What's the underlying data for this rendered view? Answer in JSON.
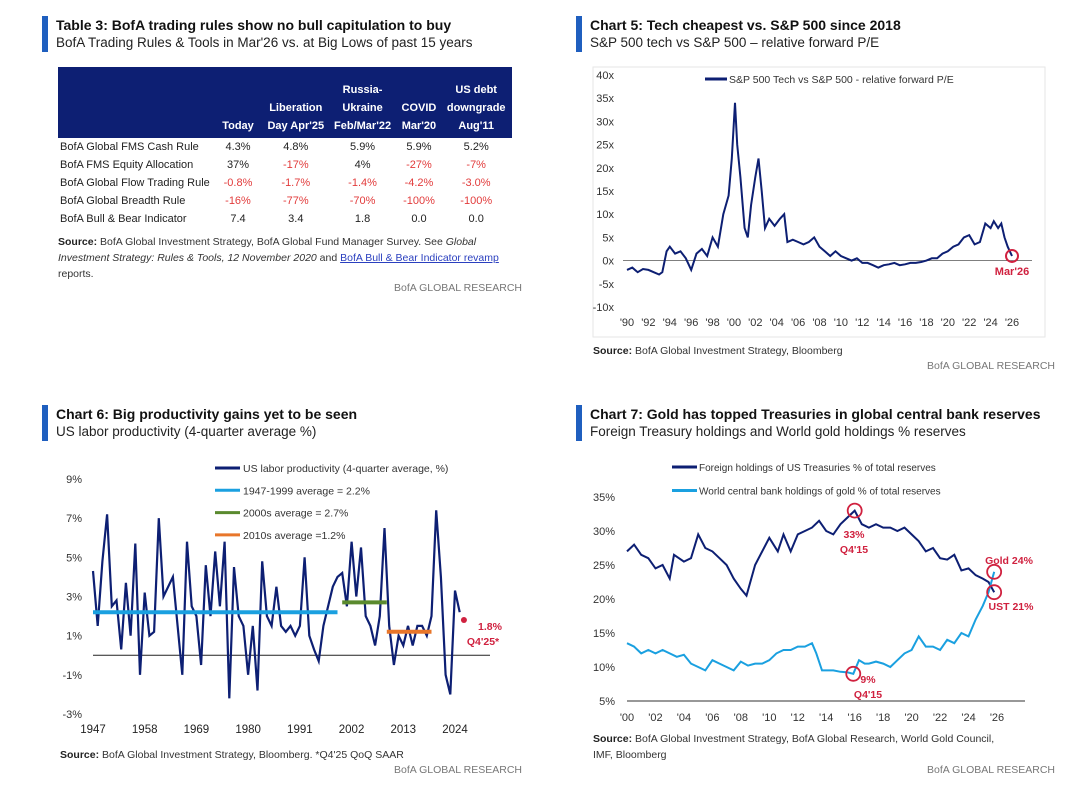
{
  "table3": {
    "title": "Table 3: BofA trading rules show no bull capitulation to buy",
    "subtitle": "BofA Trading Rules & Tools in Mar'26 vs. at Big Lows of past 15 years",
    "columns": [
      "",
      "Today",
      "Liberation Day Apr'25",
      "Russia-Ukraine Feb/Mar'22",
      "COVID Mar'20",
      "US debt downgrade Aug'11"
    ],
    "rows": [
      {
        "label": "BofA Global FMS Cash Rule",
        "values": [
          "4.3%",
          "4.8%",
          "5.9%",
          "5.9%",
          "5.2%"
        ]
      },
      {
        "label": "BofA FMS Equity Allocation",
        "values": [
          "37%",
          "-17%",
          "4%",
          "-27%",
          "-7%"
        ]
      },
      {
        "label": "BofA Global Flow Trading Rule",
        "values": [
          "-0.8%",
          "-1.7%",
          "-1.4%",
          "-4.2%",
          "-3.0%"
        ]
      },
      {
        "label": "BofA Global Breadth Rule",
        "values": [
          "-16%",
          "-77%",
          "-70%",
          "-100%",
          "-100%"
        ]
      },
      {
        "label": "BofA Bull & Bear Indicator",
        "values": [
          "7.4",
          "3.4",
          "1.8",
          "0.0",
          "0.0"
        ]
      }
    ],
    "source_label": "Source:",
    "source_text": " BofA Global Investment Strategy, BofA Global Fund Manager Survey. See ",
    "source_italic": "Global Investment Strategy: Rules & Tools, 12 November 2020",
    "source_and": " and ",
    "source_link": "BofA Bull & Bear Indicator revamp",
    "source_end": " reports.",
    "brand": "BofA GLOBAL RESEARCH"
  },
  "colors": {
    "navy": "#0d1f73",
    "light_blue": "#1aa0e0",
    "green": "#5a8a2e",
    "orange": "#e8762a",
    "red": "#d0213f",
    "negative": "#e23b3b"
  },
  "chart_data": [
    {
      "id": "chart5",
      "type": "line",
      "title": "Chart 5: Tech cheapest vs. S&P 500 since 2018",
      "subtitle": "S&P 500 tech vs S&P 500 – relative forward P/E",
      "ylim": [
        -10,
        40
      ],
      "yticks": [
        "40x",
        "35x",
        "30x",
        "25x",
        "20x",
        "15x",
        "10x",
        "5x",
        "0x",
        "-5x",
        "-10x"
      ],
      "xticks": [
        "'90",
        "'92",
        "'94",
        "'96",
        "'98",
        "'00",
        "'02",
        "'04",
        "'06",
        "'08",
        "'10",
        "'12",
        "'14",
        "'16",
        "'18",
        "'20",
        "'22",
        "'24",
        "'26"
      ],
      "series": [
        {
          "name": "S&P 500 Tech vs S&P 500 - relative forward P/E",
          "x": [
            1990,
            1990.5,
            1991,
            1991.5,
            1992,
            1992.5,
            1993,
            1993.3,
            1993.7,
            1994,
            1994.5,
            1995,
            1995.5,
            1996,
            1996.5,
            1997,
            1997.5,
            1998,
            1998.5,
            1999,
            1999.5,
            1999.8,
            2000.1,
            2000.3,
            2000.6,
            2001,
            2001.3,
            2001.6,
            2002,
            2002.3,
            2002.6,
            2002.9,
            2003.3,
            2003.8,
            2004.3,
            2004.7,
            2005,
            2005.5,
            2006,
            2006.5,
            2007,
            2007.5,
            2008,
            2008.5,
            2009,
            2009.5,
            2010,
            2010.5,
            2011,
            2011.5,
            2012,
            2012.5,
            2013,
            2013.5,
            2014,
            2014.5,
            2015,
            2015.5,
            2016,
            2016.5,
            2017,
            2017.5,
            2018,
            2018.5,
            2019,
            2019.5,
            2020,
            2020.5,
            2021,
            2021.5,
            2022,
            2022.5,
            2023,
            2023.5,
            2024,
            2024.3,
            2024.7,
            2025,
            2025.3,
            2025.6,
            2026
          ],
          "y": [
            -2,
            -1.5,
            -2.5,
            -1.8,
            -2,
            -2.5,
            -3,
            -2.5,
            2,
            3,
            1.5,
            2,
            0.5,
            -2,
            1.5,
            2.5,
            1,
            5,
            3,
            10,
            14,
            22,
            34,
            25,
            18,
            7,
            5,
            12,
            18,
            22,
            15,
            7,
            9,
            7.5,
            9,
            10,
            4,
            4.5,
            4,
            3.5,
            4,
            5,
            3,
            2,
            1,
            2,
            1,
            0.5,
            0,
            0.5,
            -0.5,
            -0.5,
            -1,
            -1.5,
            -1,
            -0.8,
            -0.5,
            -1,
            -0.8,
            -0.5,
            -0.5,
            -0.3,
            0,
            0.5,
            0.5,
            1.5,
            2,
            3,
            3.5,
            5,
            5.5,
            3.5,
            4,
            8,
            7,
            8.5,
            7,
            8,
            5,
            3,
            1
          ]
        }
      ],
      "annotations": [
        "Mar'26"
      ],
      "source_label": "Source:",
      "source_text": " BofA Global Investment Strategy, Bloomberg",
      "brand": "BofA GLOBAL RESEARCH"
    },
    {
      "id": "chart6",
      "type": "line",
      "title": "Chart 6: Big productivity gains yet to be seen",
      "subtitle": "US labor productivity (4-quarter average %)",
      "ylim": [
        -3,
        9
      ],
      "yticks": [
        "9%",
        "7%",
        "5%",
        "3%",
        "1%",
        "-1%",
        "-3%"
      ],
      "xticks": [
        "1947",
        "1958",
        "1969",
        "1980",
        "1991",
        "2002",
        "2013",
        "2024"
      ],
      "series": [
        {
          "name": "US labor productivity (4-quarter average, %)",
          "x": [
            1947,
            1948,
            1949,
            1950,
            1951,
            1952,
            1953,
            1954,
            1955,
            1956,
            1957,
            1958,
            1959,
            1960,
            1961,
            1962,
            1963,
            1964,
            1965,
            1966,
            1967,
            1968,
            1969,
            1970,
            1971,
            1972,
            1973,
            1974,
            1975,
            1976,
            1977,
            1978,
            1979,
            1980,
            1981,
            1982,
            1983,
            1984,
            1985,
            1986,
            1987,
            1988,
            1989,
            1990,
            1991,
            1992,
            1993,
            1994,
            1995,
            1996,
            1997,
            1998,
            1999,
            2000,
            2001,
            2002,
            2003,
            2004,
            2005,
            2006,
            2007,
            2008,
            2009,
            2010,
            2011,
            2012,
            2013,
            2014,
            2015,
            2016,
            2017,
            2018,
            2019,
            2020,
            2021,
            2022,
            2023,
            2024,
            2025
          ],
          "y": [
            4.3,
            1.5,
            4.8,
            7.2,
            2.5,
            2.8,
            0.3,
            3.7,
            1,
            5.7,
            -1,
            3.2,
            1,
            1.2,
            7,
            3,
            3.5,
            4,
            1.5,
            -1,
            5.8,
            2.5,
            2,
            -0.5,
            4.6,
            2,
            5.3,
            2.5,
            5.8,
            -2.2,
            4.5,
            2,
            1.5,
            -1,
            1.5,
            -1.8,
            4.8,
            2,
            1.5,
            3.5,
            1.5,
            1.2,
            1.5,
            1,
            1.5,
            5,
            1,
            0.3,
            -0.3,
            1.5,
            2.5,
            3.5,
            4,
            4.2,
            2.5,
            5.8,
            3,
            5.5,
            2,
            1.5,
            0.5,
            2,
            6.5,
            1.5,
            -0.5,
            1,
            0.5,
            1.5,
            0.5,
            1.5,
            1.5,
            1,
            2,
            7.4,
            4,
            -1,
            -2,
            3.3,
            2.2
          ]
        },
        {
          "name": "1947-1999 average = 2.2%",
          "x": [
            1947,
            1999
          ],
          "y": [
            2.2,
            2.2
          ]
        },
        {
          "name": "2000s average = 2.7%",
          "x": [
            2000,
            2009.5
          ],
          "y": [
            2.7,
            2.7
          ]
        },
        {
          "name": "2010s average =1.2%",
          "x": [
            2009.5,
            2019
          ],
          "y": [
            1.2,
            1.2
          ]
        }
      ],
      "highlight": {
        "x": 2025.9,
        "y": 1.8,
        "label1": "1.8%",
        "label2": "Q4'25*"
      },
      "source_label": "Source:",
      "source_text": " BofA Global Investment Strategy, Bloomberg. *Q4'25 QoQ SAAR",
      "brand": "BofA GLOBAL RESEARCH"
    },
    {
      "id": "chart7",
      "type": "line",
      "title": "Chart 7: Gold has topped Treasuries in global central bank reserves",
      "subtitle": "Foreign Treasury holdings and World gold holdings % reserves",
      "ylim": [
        5,
        35
      ],
      "yticks": [
        "35%",
        "30%",
        "25%",
        "20%",
        "15%",
        "10%",
        "5%"
      ],
      "xticks": [
        "'00",
        "'02",
        "'04",
        "'06",
        "'08",
        "'10",
        "'12",
        "'14",
        "'16",
        "'18",
        "'20",
        "'22",
        "'24",
        "'26"
      ],
      "series": [
        {
          "name": "Foreign holdings of US Treasuries % of total reserves",
          "x": [
            2000,
            2000.5,
            2001,
            2001.5,
            2002,
            2002.5,
            2003,
            2003.3,
            2004,
            2004.5,
            2005,
            2005.5,
            2006,
            2006.5,
            2007,
            2007.5,
            2008,
            2008.4,
            2009,
            2009.5,
            2010,
            2010.6,
            2011,
            2011.5,
            2012,
            2012.5,
            2013,
            2013.5,
            2014,
            2014.5,
            2015,
            2015.5,
            2016,
            2016.5,
            2017,
            2017.5,
            2018,
            2018.5,
            2019,
            2019.5,
            2020,
            2020.5,
            2021,
            2021.5,
            2022,
            2022.5,
            2023,
            2023.5,
            2024,
            2024.5,
            2025,
            2025.4,
            2025.8
          ],
          "y": [
            27,
            28,
            26.5,
            26,
            24.5,
            25,
            23,
            26.5,
            25.5,
            26,
            29.5,
            27.5,
            27,
            26,
            25,
            23,
            21.5,
            20.5,
            25,
            27,
            29,
            27,
            29.5,
            27,
            29.5,
            30,
            30.5,
            31.5,
            30,
            29.5,
            31,
            32,
            33,
            31,
            30.5,
            31,
            30.5,
            30.5,
            30,
            30.5,
            29.5,
            28.5,
            27,
            27.5,
            26,
            25.8,
            26.5,
            24.2,
            24.5,
            23.5,
            23,
            22.5,
            21
          ]
        },
        {
          "name": "World central bank holdings of gold % of total reserves",
          "x": [
            2000,
            2000.5,
            2001,
            2001.5,
            2002,
            2002.5,
            2003,
            2003.5,
            2004,
            2004.5,
            2005,
            2005.5,
            2006,
            2006.5,
            2007,
            2007.5,
            2008,
            2008.5,
            2009,
            2009.5,
            2010,
            2010.5,
            2011,
            2011.5,
            2012,
            2012.5,
            2013,
            2013.3,
            2013.7,
            2014,
            2014.5,
            2015,
            2015.5,
            2015.9,
            2016.3,
            2016.7,
            2017,
            2017.5,
            2018,
            2018.5,
            2019,
            2019.5,
            2020,
            2020.5,
            2021,
            2021.5,
            2022,
            2022.5,
            2023,
            2023.5,
            2024,
            2024.5,
            2025,
            2025.4,
            2025.8
          ],
          "y": [
            13.5,
            13,
            12,
            12.5,
            12,
            12.5,
            12,
            11.5,
            11.8,
            10.5,
            10,
            9.5,
            11,
            10.5,
            10,
            9.5,
            10.8,
            10.2,
            10.5,
            10.5,
            11,
            12,
            12.5,
            12.5,
            13,
            13,
            13.5,
            12,
            9.5,
            9.5,
            9.5,
            9.3,
            9.2,
            9,
            11,
            10.5,
            10.5,
            10.8,
            10.5,
            10,
            11,
            12,
            12.5,
            14.5,
            13,
            13,
            12.5,
            14,
            13.5,
            15,
            14.5,
            17,
            19,
            21,
            24
          ]
        }
      ],
      "annotations": [
        {
          "label1": "33%",
          "label2": "Q4'15"
        },
        {
          "label1": "9%",
          "label2": "Q4'15"
        },
        {
          "label1": "Gold 24%"
        },
        {
          "label1": "UST 21%"
        }
      ],
      "source_label": "Source:",
      "source_text": " BofA Global Investment Strategy, BofA Global Research, World Gold Council, IMF, Bloomberg",
      "brand": "BofA GLOBAL RESEARCH"
    }
  ]
}
